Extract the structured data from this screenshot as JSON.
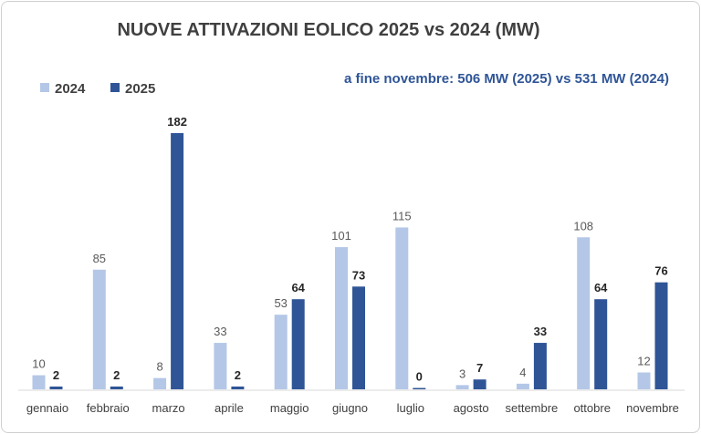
{
  "chart_data": {
    "type": "bar",
    "title": "NUOVE ATTIVAZIONI EOLICO 2025 vs 2024 (MW)",
    "annotation": "a fine novembre: 506 MW (2025) vs 531 MW (2024)",
    "categories": [
      "gennaio",
      "febbraio",
      "marzo",
      "aprile",
      "maggio",
      "giugno",
      "luglio",
      "agosto",
      "settembre",
      "ottobre",
      "novembre"
    ],
    "series": [
      {
        "name": "2024",
        "color": "#b4c7e7",
        "values": [
          10,
          85,
          8,
          33,
          53,
          101,
          115,
          3,
          4,
          108,
          12
        ]
      },
      {
        "name": "2025",
        "color": "#2f5597",
        "values": [
          2,
          2,
          182,
          2,
          64,
          73,
          0,
          7,
          33,
          64,
          76
        ]
      }
    ],
    "xlabel": "",
    "ylabel": "",
    "ylim": [
      0,
      182
    ],
    "grid": false,
    "legend": "top-left",
    "data_labels": true
  }
}
